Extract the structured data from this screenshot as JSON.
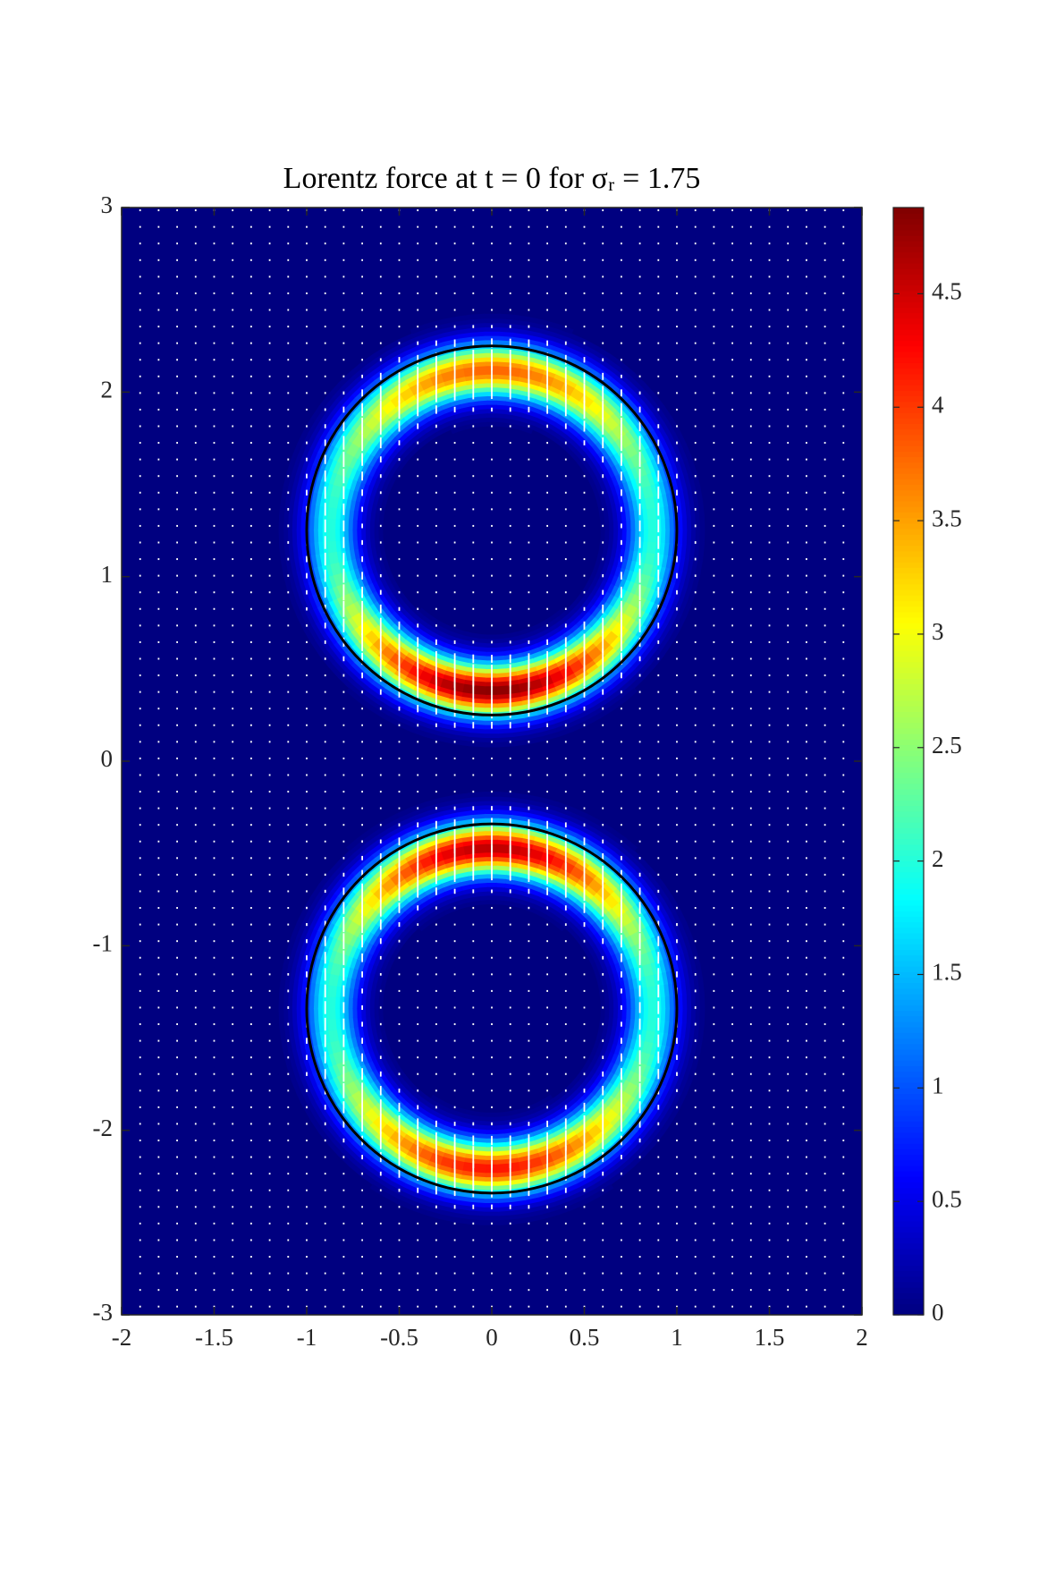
{
  "chart_data": {
    "type": "heatmap",
    "title": "Lorentz force at t = 0 for σᵣ = 1.75",
    "xlim": [
      -2,
      2
    ],
    "xticks": [
      -2,
      -1.5,
      -1,
      -0.5,
      0,
      0.5,
      1,
      1.5,
      2
    ],
    "ylim": [
      -3,
      3
    ],
    "yticks": [
      -3,
      -2,
      -1,
      0,
      1,
      2,
      3
    ],
    "colormap": "jet",
    "background": 0,
    "clim": [
      0,
      4.88
    ],
    "cticks": [
      0,
      0.5,
      1,
      1.5,
      2,
      2.5,
      3,
      3.5,
      4,
      4.5
    ],
    "rings": [
      {
        "center": [
          0,
          1.25
        ],
        "radius": 0.87,
        "width": 0.1,
        "top": 3.8,
        "bottom": 4.85,
        "side": 2.0
      },
      {
        "center": [
          0,
          -1.34
        ],
        "radius": 0.87,
        "width": 0.1,
        "top": 4.6,
        "bottom": 4.2,
        "side": 2.0
      }
    ],
    "circles": [
      {
        "center": [
          0,
          1.25
        ],
        "radius": 1,
        "color": "#000000"
      },
      {
        "center": [
          0,
          -1.34
        ],
        "radius": 1,
        "color": "#000000"
      }
    ],
    "quiver": {
      "color": "#ffffff",
      "dx": 0.1,
      "dy": 0.09
    }
  }
}
